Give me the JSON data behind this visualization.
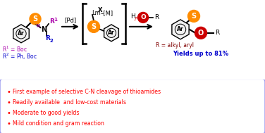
{
  "bg_color": "#ffffff",
  "bullet_box_edge": "#9999ee",
  "bullet_text_color": "#ff0000",
  "bullet_lines": [
    "First example of selective C-N cleavage of thioamides",
    "Readily available  and low-cost materials",
    "Moderate to good yields",
    "Mild condition and gram reaction"
  ],
  "orange_color": "#FF8C00",
  "red_color": "#CC0000",
  "red_dark_color": "#990000",
  "purple_color": "#AA00AA",
  "blue_color": "#0000CC",
  "dark_red_color": "#800000",
  "black": "#000000",
  "gray_hex": "#e8e8e8",
  "r1_color": "#AA00AA",
  "r2_color": "#0000CC"
}
